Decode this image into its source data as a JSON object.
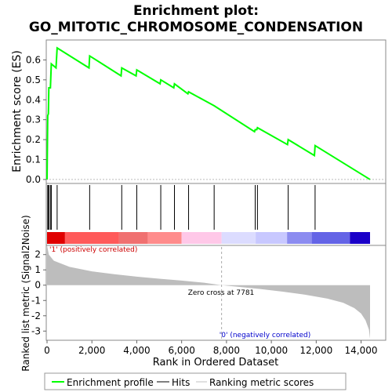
{
  "chart_data": {
    "type": "line",
    "title_line1": "Enrichment plot:",
    "title_line2": "GO_MITOTIC_CHROMOSOME_CONDENSATION",
    "es_panel": {
      "ylabel": "Enrichment score (ES)",
      "ylim": [
        -0.02,
        0.7
      ],
      "yticks": [
        "0.0",
        "0.1",
        "0.2",
        "0.3",
        "0.4",
        "0.5",
        "0.6"
      ],
      "ytick_values": [
        0,
        0.1,
        0.2,
        0.3,
        0.4,
        0.5,
        0.6
      ],
      "line_color": "#00ff00",
      "points": [
        [
          0,
          0
        ],
        [
          30,
          0.32
        ],
        [
          60,
          0.33
        ],
        [
          80,
          0.46
        ],
        [
          150,
          0.46
        ],
        [
          190,
          0.58
        ],
        [
          400,
          0.56
        ],
        [
          450,
          0.66
        ],
        [
          1870,
          0.56
        ],
        [
          1900,
          0.62
        ],
        [
          3300,
          0.52
        ],
        [
          3330,
          0.56
        ],
        [
          3970,
          0.52
        ],
        [
          4000,
          0.55
        ],
        [
          5040,
          0.48
        ],
        [
          5070,
          0.5
        ],
        [
          5650,
          0.46
        ],
        [
          5680,
          0.48
        ],
        [
          6280,
          0.43
        ],
        [
          6310,
          0.44
        ],
        [
          7450,
          0.37
        ],
        [
          9250,
          0.24
        ],
        [
          9280,
          0.25
        ],
        [
          9350,
          0.25
        ],
        [
          9380,
          0.26
        ],
        [
          10720,
          0.175
        ],
        [
          10750,
          0.2
        ],
        [
          11920,
          0.12
        ],
        [
          11950,
          0.17
        ],
        [
          14400,
          0.0
        ]
      ]
    },
    "hits": [
      30,
      60,
      80,
      150,
      190,
      450,
      1900,
      3330,
      4000,
      5070,
      5680,
      6310,
      7450,
      9280,
      9380,
      10750,
      11950
    ],
    "heatmap_bands": [
      {
        "from": 0,
        "to": 800,
        "color": "#e00000"
      },
      {
        "from": 800,
        "to": 3200,
        "color": "#ff5a5a"
      },
      {
        "from": 3200,
        "to": 4500,
        "color": "#f07070"
      },
      {
        "from": 4500,
        "to": 6000,
        "color": "#ff8c8c"
      },
      {
        "from": 6000,
        "to": 7781,
        "color": "#ffc8e8"
      },
      {
        "from": 7781,
        "to": 9300,
        "color": "#dcdcff"
      },
      {
        "from": 9300,
        "to": 10700,
        "color": "#c8c8ff"
      },
      {
        "from": 10700,
        "to": 11800,
        "color": "#8c8cf0"
      },
      {
        "from": 11800,
        "to": 13500,
        "color": "#6464e6"
      },
      {
        "from": 13500,
        "to": 14400,
        "color": "#1a00c8"
      }
    ],
    "metric_panel": {
      "ylabel": "Ranked list metric (Signal2Noise)",
      "ylim": [
        -3.6,
        2.6
      ],
      "yticks": [
        "2",
        "1",
        "0",
        "-1",
        "-2",
        "-3"
      ],
      "ytick_values": [
        2,
        1,
        0,
        -1,
        -2,
        -3
      ],
      "curve": [
        [
          0,
          2.6
        ],
        [
          80,
          2.0
        ],
        [
          300,
          1.6
        ],
        [
          1000,
          1.2
        ],
        [
          2000,
          0.9
        ],
        [
          3000,
          0.72
        ],
        [
          4000,
          0.56
        ],
        [
          5000,
          0.42
        ],
        [
          6000,
          0.3
        ],
        [
          7000,
          0.16
        ],
        [
          7781,
          0.0
        ],
        [
          8500,
          -0.1
        ],
        [
          9500,
          -0.25
        ],
        [
          10500,
          -0.42
        ],
        [
          11500,
          -0.62
        ],
        [
          12500,
          -0.88
        ],
        [
          13200,
          -1.15
        ],
        [
          13700,
          -1.5
        ],
        [
          14000,
          -1.85
        ],
        [
          14200,
          -2.3
        ],
        [
          14350,
          -2.9
        ],
        [
          14400,
          -3.5
        ]
      ],
      "zero_cross_label": "Zero cross at 7781",
      "zero_cross": 7781,
      "pos_label": "'1' (positively correlated)",
      "neg_label": "'0' (negatively correlated)"
    },
    "xlabel": "Rank in Ordered Dataset",
    "xlim": [
      0,
      14400
    ],
    "xticks": [
      "0",
      "2,000",
      "4,000",
      "6,000",
      "8,000",
      "10,000",
      "12,000",
      "14,000"
    ],
    "xtick_values": [
      0,
      2000,
      4000,
      6000,
      8000,
      10000,
      12000,
      14000
    ],
    "legend": {
      "items": [
        "Enrichment profile",
        "Hits",
        "Ranking metric scores"
      ],
      "colors": [
        "#00ff00",
        "#000000",
        "#c0c0c0"
      ]
    }
  }
}
